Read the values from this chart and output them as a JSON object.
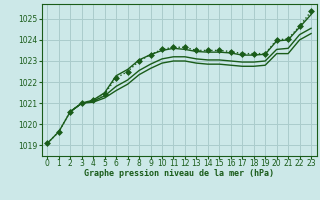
{
  "bg_color": "#cce8e8",
  "grid_color": "#aacccc",
  "line_color": "#1a5c1a",
  "marker_color": "#1a5c1a",
  "xlabel": "Graphe pression niveau de la mer (hPa)",
  "xlabel_color": "#1a5c1a",
  "ylim": [
    1018.5,
    1025.7
  ],
  "xlim": [
    -0.5,
    23.5
  ],
  "yticks": [
    1019,
    1020,
    1021,
    1022,
    1023,
    1024,
    1025
  ],
  "xticks": [
    0,
    1,
    2,
    3,
    4,
    5,
    6,
    7,
    8,
    9,
    10,
    11,
    12,
    13,
    14,
    15,
    16,
    17,
    18,
    19,
    20,
    21,
    22,
    23
  ],
  "series": [
    {
      "x": [
        0,
        1,
        2,
        3,
        4,
        5,
        6,
        7,
        8,
        9,
        10,
        11,
        12,
        13,
        14,
        15,
        16,
        17,
        18,
        19,
        20,
        21,
        22,
        23
      ],
      "y": [
        1019.1,
        1019.65,
        1020.6,
        1021.0,
        1021.15,
        1021.45,
        1022.2,
        1022.5,
        1023.0,
        1023.3,
        1023.55,
        1023.65,
        1023.65,
        1023.5,
        1023.5,
        1023.5,
        1023.45,
        1023.35,
        1023.35,
        1023.35,
        1024.0,
        1024.05,
        1024.65,
        1025.35
      ],
      "marker": "D",
      "markersize": 3,
      "linewidth": 1.0,
      "linestyle": ":"
    },
    {
      "x": [
        0,
        1,
        2,
        3,
        4,
        5,
        6,
        7,
        8,
        9,
        10,
        11,
        12,
        13,
        14,
        15,
        16,
        17,
        18,
        19,
        20,
        21,
        22,
        23
      ],
      "y": [
        1019.1,
        1019.65,
        1020.6,
        1021.0,
        1021.15,
        1021.5,
        1022.3,
        1022.6,
        1023.05,
        1023.3,
        1023.5,
        1023.6,
        1023.55,
        1023.45,
        1023.42,
        1023.42,
        1023.38,
        1023.28,
        1023.28,
        1023.32,
        1023.95,
        1024.0,
        1024.6,
        1025.2
      ],
      "marker": null,
      "markersize": 0,
      "linewidth": 1.0,
      "linestyle": "-"
    },
    {
      "x": [
        2,
        3,
        4,
        5,
        6,
        7,
        8,
        9,
        10,
        11,
        12,
        13,
        14,
        15,
        16,
        17,
        18,
        19,
        20,
        21,
        22,
        23
      ],
      "y": [
        1020.6,
        1021.0,
        1021.1,
        1021.35,
        1021.8,
        1022.1,
        1022.55,
        1022.85,
        1023.1,
        1023.2,
        1023.2,
        1023.1,
        1023.05,
        1023.05,
        1023.0,
        1022.95,
        1022.95,
        1023.0,
        1023.55,
        1023.6,
        1024.25,
        1024.55
      ],
      "marker": null,
      "markersize": 0,
      "linewidth": 1.0,
      "linestyle": "-"
    },
    {
      "x": [
        2,
        3,
        4,
        5,
        6,
        7,
        8,
        9,
        10,
        11,
        12,
        13,
        14,
        15,
        16,
        17,
        18,
        19,
        20,
        21,
        22,
        23
      ],
      "y": [
        1020.6,
        1021.0,
        1021.05,
        1021.25,
        1021.6,
        1021.9,
        1022.35,
        1022.65,
        1022.9,
        1023.0,
        1023.0,
        1022.9,
        1022.85,
        1022.85,
        1022.8,
        1022.75,
        1022.75,
        1022.8,
        1023.35,
        1023.35,
        1024.0,
        1024.3
      ],
      "marker": null,
      "markersize": 0,
      "linewidth": 1.0,
      "linestyle": "-"
    }
  ]
}
